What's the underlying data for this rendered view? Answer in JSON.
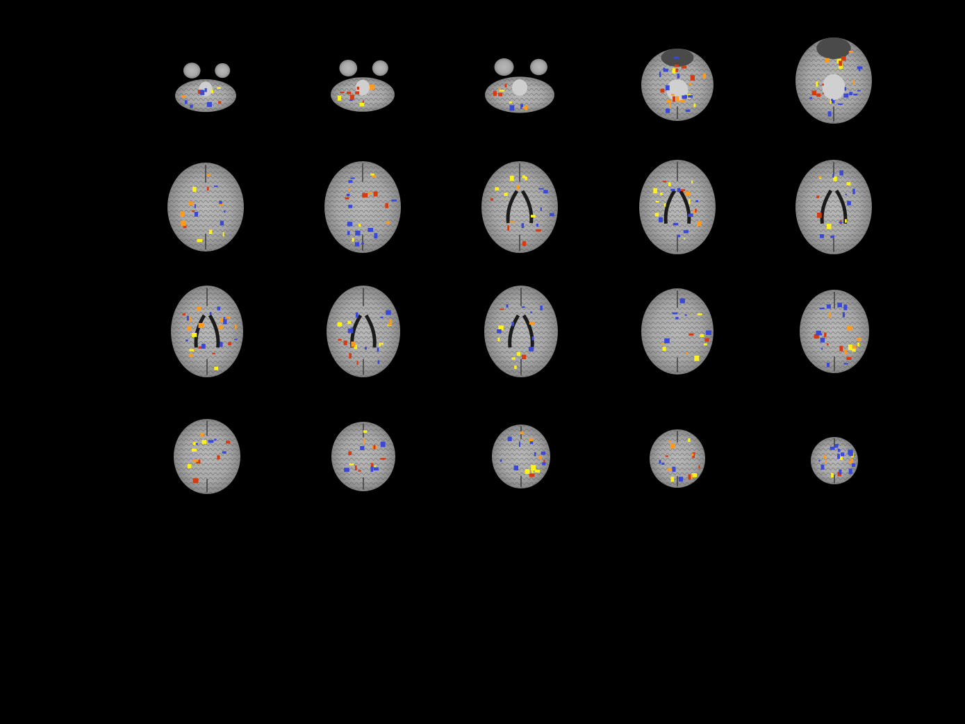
{
  "viewer": {
    "background": "#000000",
    "view": "axial",
    "rows": 4,
    "columns": 5,
    "overlay_colors": {
      "positive_low": "#d83a10",
      "positive_mid": "#ff9a1a",
      "positive_high": "#fff21a",
      "negative": "#3a48d8"
    },
    "underlay_colors": {
      "tissue_light": "#bdbdbd",
      "tissue_dark": "#5e5e5e",
      "ventricle": "#1a1a1a"
    }
  }
}
